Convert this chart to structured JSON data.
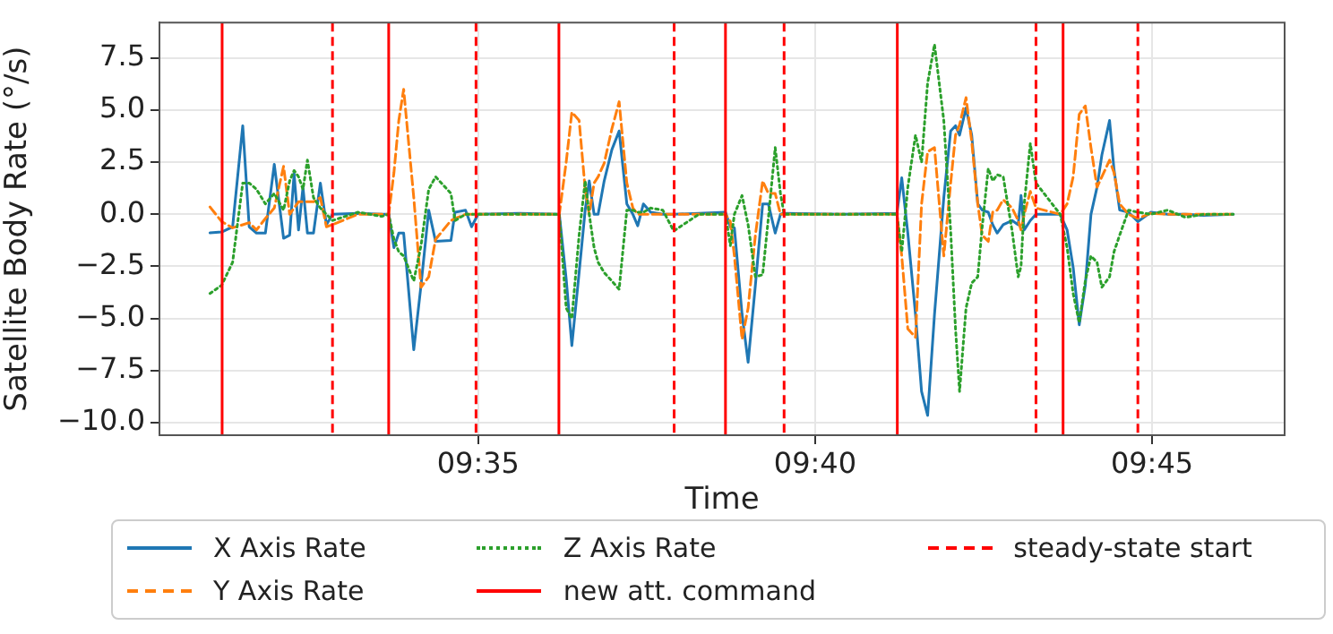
{
  "chart_data": {
    "type": "line",
    "xlabel": "Time",
    "ylabel": "Satellite Body Rate (°/s)",
    "x": [
      9.517,
      9.5199,
      9.5226,
      9.5251,
      9.5267,
      9.5285,
      9.5307,
      9.5329,
      9.5352,
      9.5367,
      9.5378,
      9.5389,
      9.54,
      9.5411,
      9.5426,
      9.5443,
      9.5458,
      9.5473,
      9.5536,
      9.5595,
      9.5612,
      9.5625,
      9.5637,
      9.5649,
      9.5674,
      9.5692,
      9.5711,
      9.5728,
      9.5766,
      9.5776,
      9.5802,
      9.5817,
      9.5833,
      9.5935,
      9.6034,
      9.6051,
      9.6065,
      9.6083,
      9.6098,
      9.6108,
      9.612,
      9.613,
      9.6145,
      9.6164,
      9.6182,
      9.6201,
      9.6216,
      9.6228,
      9.6242,
      9.626,
      9.629,
      9.6317,
      9.6379,
      9.6445,
      9.6457,
      9.6467,
      9.6486,
      9.6501,
      9.6519,
      9.6537,
      9.6551,
      9.6568,
      9.6581,
      9.659,
      9.6733,
      9.6869,
      9.6881,
      9.6896,
      9.6915,
      9.693,
      9.6945,
      9.6962,
      9.6985,
      9.7002,
      9.7014,
      9.7024,
      9.704,
      9.7054,
      9.7069,
      9.708,
      9.7095,
      9.7106,
      9.7117,
      9.7132,
      9.7154,
      9.7169,
      9.7176,
      9.7184,
      9.7199,
      9.7213,
      9.7273,
      9.729,
      9.7305,
      9.732,
      9.7335,
      9.7349,
      9.7364,
      9.7376,
      9.7395,
      9.7406,
      9.742,
      9.7442,
      9.7465,
      9.7497,
      9.7539,
      9.7583,
      9.7627,
      9.7701
    ],
    "series": [
      {
        "name": "X Axis Rate",
        "color": "#1f77b4",
        "line_style": "solid",
        "values": [
          -0.89,
          -0.85,
          -0.6,
          4.25,
          -0.6,
          -0.9,
          -0.9,
          2.4,
          -1.15,
          -1.0,
          1.95,
          -0.75,
          1.3,
          -0.9,
          -0.9,
          1.5,
          -0.5,
          0.0,
          0.05,
          0.0,
          0.0,
          -1.6,
          -0.9,
          -0.9,
          -6.5,
          -3.4,
          0.2,
          -1.3,
          -1.25,
          0.1,
          0.2,
          -0.6,
          0.0,
          0.05,
          0.0,
          -3.1,
          -6.3,
          -2.8,
          0.2,
          1.6,
          0.0,
          0.0,
          1.6,
          3.1,
          4.0,
          0.5,
          0.0,
          -0.55,
          0.5,
          0.1,
          0.0,
          0.0,
          0.05,
          0.1,
          -0.6,
          -0.65,
          -4.8,
          -7.1,
          -3.4,
          0.5,
          0.5,
          -0.9,
          0.0,
          0.05,
          0.0,
          0.05,
          1.75,
          -0.9,
          -4.8,
          -8.5,
          -9.65,
          -4.8,
          0.8,
          4.0,
          4.25,
          3.8,
          5.1,
          3.8,
          0.5,
          0.2,
          0.1,
          -0.5,
          -0.9,
          -0.5,
          -0.3,
          -0.5,
          0.9,
          -0.75,
          -0.3,
          0.0,
          0.0,
          -0.75,
          -2.55,
          -5.3,
          -3.4,
          0.0,
          1.3,
          2.85,
          4.5,
          2.15,
          0.2,
          0.1,
          -0.35,
          0.1,
          0.0,
          0.0,
          -0.05,
          0.0
        ]
      },
      {
        "name": "Y Axis Rate",
        "color": "#ff7f0e",
        "line_style": "dashed",
        "values": [
          0.35,
          -0.35,
          -0.65,
          -0.5,
          -0.4,
          -0.75,
          -0.2,
          0.3,
          2.3,
          0.0,
          0.3,
          0.6,
          0.6,
          0.6,
          0.6,
          0.8,
          -0.6,
          -0.5,
          0.0,
          0.0,
          0.0,
          2.0,
          4.5,
          6.0,
          0.8,
          -3.5,
          -3.0,
          -1.2,
          -0.3,
          -0.2,
          0.0,
          0.0,
          0.0,
          0.0,
          0.0,
          2.5,
          4.9,
          4.5,
          1.2,
          0.0,
          1.5,
          1.8,
          2.45,
          4.1,
          5.4,
          1.5,
          0.3,
          0.0,
          0.0,
          0.0,
          0.0,
          0.0,
          0.0,
          0.0,
          -0.35,
          -2.0,
          -6.0,
          -4.5,
          -1.0,
          1.6,
          1.0,
          1.0,
          0.0,
          0.0,
          0.0,
          0.0,
          -2.0,
          -5.5,
          -5.9,
          0.5,
          3.0,
          3.2,
          -2.0,
          1.5,
          3.8,
          4.3,
          5.6,
          3.5,
          0.5,
          -1.0,
          -1.3,
          0.1,
          0.2,
          0.7,
          0.3,
          -0.3,
          -0.75,
          0.0,
          1.1,
          0.3,
          0.0,
          0.5,
          1.8,
          4.8,
          5.2,
          3.2,
          1.3,
          1.8,
          2.6,
          2.0,
          0.5,
          0.0,
          -0.2,
          0.05,
          0.0,
          0.0,
          0.0,
          0.0
        ]
      },
      {
        "name": "Z Axis Rate",
        "color": "#2ca02c",
        "line_style": "dotted",
        "values": [
          -3.8,
          -3.4,
          -2.3,
          1.5,
          1.5,
          1.2,
          0.5,
          1.0,
          0.2,
          1.6,
          2.1,
          1.8,
          1.2,
          2.6,
          0.8,
          0.3,
          0.0,
          -0.3,
          0.1,
          -0.1,
          0.0,
          -1.2,
          -1.8,
          -2.0,
          -3.2,
          -1.5,
          1.2,
          1.8,
          1.0,
          -0.3,
          0.0,
          0.0,
          0.0,
          0.0,
          0.0,
          -4.5,
          -5.0,
          -1.0,
          1.6,
          0.0,
          -1.6,
          -2.3,
          -2.8,
          -3.2,
          -3.6,
          0.2,
          0.2,
          0.1,
          0.1,
          0.3,
          0.2,
          -0.8,
          0.0,
          0.0,
          -1.5,
          0.0,
          0.9,
          -0.5,
          -3.0,
          -2.9,
          -0.2,
          3.2,
          1.0,
          0.0,
          0.0,
          0.0,
          -1.8,
          1.3,
          3.8,
          2.5,
          6.3,
          8.15,
          4.5,
          -0.8,
          -5.5,
          -8.5,
          -4.5,
          -3.3,
          -3.0,
          -0.6,
          2.2,
          1.6,
          1.9,
          1.8,
          -0.8,
          -3.0,
          -2.5,
          0.5,
          3.4,
          1.5,
          0.0,
          -1.6,
          -3.8,
          -5.2,
          -3.2,
          -2.0,
          -2.3,
          -3.5,
          -3.0,
          -1.8,
          -1.0,
          0.2,
          0.1,
          0.0,
          0.2,
          -0.15,
          0.0,
          0.0
        ]
      }
    ],
    "xlim": [
      9.5045,
      9.7828
    ],
    "xticks": [
      {
        "value": 9.583333,
        "label": "09:35"
      },
      {
        "value": 9.666667,
        "label": "09:40"
      },
      {
        "value": 9.75,
        "label": "09:45"
      }
    ],
    "ylim": [
      -10.6,
      9.2
    ],
    "yticks": [
      {
        "value": -10,
        "label": "−10.0"
      },
      {
        "value": -7.5,
        "label": "−7.5"
      },
      {
        "value": -5,
        "label": "−5.0"
      },
      {
        "value": -2.5,
        "label": "−2.5"
      },
      {
        "value": 0,
        "label": "0.0"
      },
      {
        "value": 2.5,
        "label": "2.5"
      },
      {
        "value": 5,
        "label": "5.0"
      },
      {
        "value": 7.5,
        "label": "7.5"
      }
    ],
    "ref_lines": [
      {
        "axis": "x",
        "value": 9.52,
        "label": "new att. command",
        "color": "#ff0000",
        "line_style": "solid"
      },
      {
        "axis": "x",
        "value": 9.5473,
        "label": "steady-state start",
        "color": "#ff0000",
        "line_style": "dashed"
      },
      {
        "axis": "x",
        "value": 9.5612,
        "color": "#ff0000",
        "line_style": "solid"
      },
      {
        "axis": "x",
        "value": 9.5828,
        "color": "#ff0000",
        "line_style": "dashed"
      },
      {
        "axis": "x",
        "value": 9.6033,
        "color": "#ff0000",
        "line_style": "solid"
      },
      {
        "axis": "x",
        "value": 9.6318,
        "color": "#ff0000",
        "line_style": "dashed"
      },
      {
        "axis": "x",
        "value": 9.6445,
        "color": "#ff0000",
        "line_style": "solid"
      },
      {
        "axis": "x",
        "value": 9.659,
        "color": "#ff0000",
        "line_style": "dashed"
      },
      {
        "axis": "x",
        "value": 9.687,
        "color": "#ff0000",
        "line_style": "solid"
      },
      {
        "axis": "x",
        "value": 9.7213,
        "color": "#ff0000",
        "line_style": "dashed"
      },
      {
        "axis": "x",
        "value": 9.728,
        "color": "#ff0000",
        "line_style": "solid"
      },
      {
        "axis": "x",
        "value": 9.7465,
        "color": "#ff0000",
        "line_style": "dashed"
      }
    ],
    "grid": true,
    "legend": "bottom",
    "marker": "none"
  }
}
